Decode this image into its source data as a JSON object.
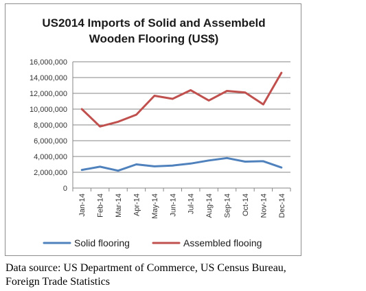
{
  "chart_data": {
    "type": "line",
    "title_line1": "US2014  Imports of Solid and Assembeld",
    "title_line2": "Wooden Flooring (US$)",
    "categories": [
      "Jan-14",
      "Feb-14",
      "Mar-14",
      "Apr-14",
      "May-14",
      "Jun-14",
      "Jul-14",
      "Aug-14",
      "Sep-14",
      "Oct-14",
      "Nov-14",
      "Dec-14"
    ],
    "series": [
      {
        "name": "Solid flooring",
        "color": "#4f81bd",
        "values": [
          2300000,
          2700000,
          2200000,
          3000000,
          2750000,
          2850000,
          3100000,
          3500000,
          3800000,
          3350000,
          3400000,
          2600000
        ]
      },
      {
        "name": "Assembled flooing",
        "color": "#c0504d",
        "values": [
          10000000,
          7800000,
          8400000,
          9300000,
          11700000,
          11300000,
          12400000,
          11100000,
          12300000,
          12100000,
          10600000,
          14600000
        ]
      }
    ],
    "y_ticks": [
      "0",
      "2,000,000",
      "4,000,000",
      "6,000,000",
      "8,000,000",
      "10,000,000",
      "12,000,000",
      "14,000,000",
      "16,000,000"
    ],
    "ylim": [
      0,
      16000000
    ],
    "grid": true,
    "legend_position": "bottom"
  },
  "caption": {
    "line1": "Data source: US Department of Commerce, US Census Bureau,",
    "line2": "Foreign Trade Statistics"
  }
}
